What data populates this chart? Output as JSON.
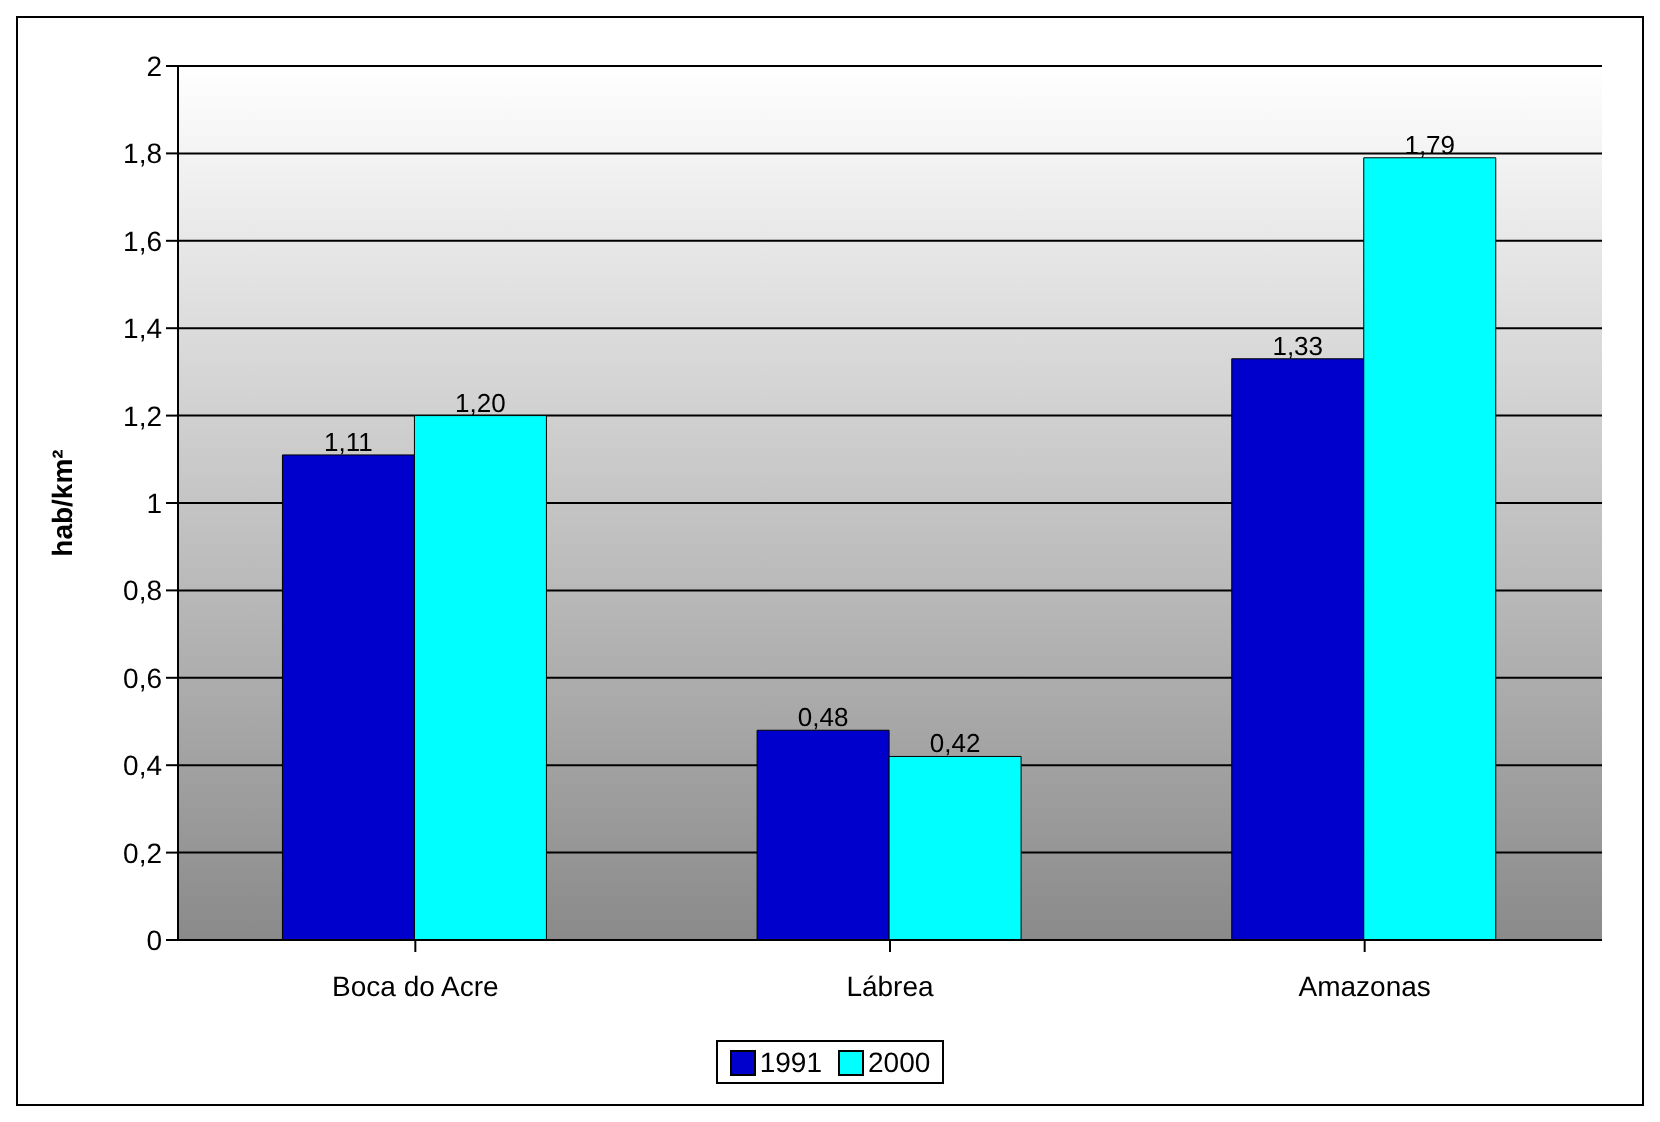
{
  "chart_data": {
    "type": "bar",
    "ylabel": "hab/km²",
    "categories": [
      "Boca do Acre",
      "Lábrea",
      "Amazonas"
    ],
    "series": [
      {
        "name": "1991",
        "color": "#0000cc",
        "values": [
          1.11,
          0.48,
          1.33
        ],
        "value_labels": [
          "1,11",
          "0,48",
          "1,33"
        ]
      },
      {
        "name": "2000",
        "color": "#00ffff",
        "values": [
          1.2,
          0.42,
          1.79
        ],
        "value_labels": [
          "1,20",
          "0,42",
          "1,79"
        ]
      }
    ],
    "ylim": [
      0,
      2
    ],
    "yticks": [
      0,
      {
        "value": 0.2,
        "label": "0,2"
      },
      {
        "value": 0.4,
        "label": "0,4"
      },
      {
        "value": 0.6,
        "label": "0,6"
      },
      {
        "value": 0.8,
        "label": "0,8"
      },
      1,
      {
        "value": 1.2,
        "label": "1,2"
      },
      {
        "value": 1.4,
        "label": "1,4"
      },
      {
        "value": 1.6,
        "label": "1,6"
      },
      {
        "value": 1.8,
        "label": "1,8"
      },
      2
    ],
    "grid": "y",
    "legend": "bottom"
  }
}
